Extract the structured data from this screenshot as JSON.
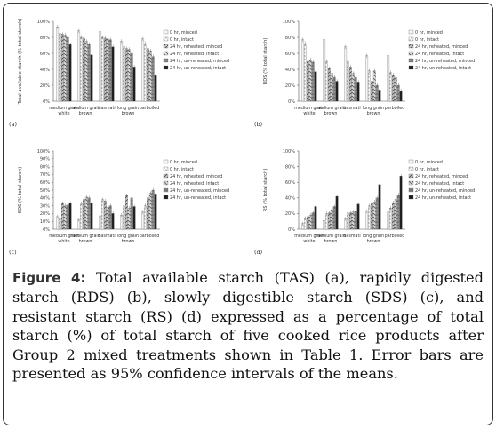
{
  "caption": {
    "label": "Figure 4:",
    "text": "Total available starch (TAS) (a), rapidly digested starch (RDS) (b), slowly digestible starch (SDS) (c), and resistant starch (RS) (d) expressed as a percentage of total starch (%) of total starch of five cooked rice products after Group 2 mixed treatments shown in Table 1. Error bars are presented as 95% confidence intervals of the means."
  },
  "colors": {
    "frame": "#333333",
    "bar_dark": "#202020",
    "bar_light": "#f2f2f2"
  },
  "legend_entries": [
    "0 hr, minced",
    "0 hr, intact",
    "24 hr, reheated, minced",
    "24 hr, reheated, intact",
    "24 hr, un-reheated, minced",
    "24 hr, un-reheated, intact"
  ],
  "chart_data": [
    {
      "type": "bar",
      "panel_label": "(a)",
      "ylabel": "Total available starch (% total starch)",
      "ylim": [
        0,
        100
      ],
      "yticks": [
        "0%",
        "20%",
        "40%",
        "60%",
        "80%",
        "100%"
      ],
      "categories": [
        "medium grain white",
        "medium grain brown",
        "basmati",
        "long grain brown",
        "parboiled"
      ],
      "legend_position": "right",
      "series": [
        {
          "name": "0 hr, minced",
          "values": [
            93,
            88,
            87,
            75,
            78
          ]
        },
        {
          "name": "0 hr, intact",
          "values": [
            85,
            80,
            80,
            68,
            72
          ]
        },
        {
          "name": "24 hr, reheated, minced",
          "values": [
            84,
            79,
            79,
            66,
            66
          ]
        },
        {
          "name": "24 hr, reheated, intact",
          "values": [
            83,
            75,
            78,
            65,
            63
          ]
        },
        {
          "name": "24 hr, un-reheated, minced",
          "values": [
            80,
            71,
            77,
            60,
            56
          ]
        },
        {
          "name": "24 hr, un-reheated, intact",
          "values": [
            71,
            58,
            68,
            43,
            32
          ]
        }
      ]
    },
    {
      "type": "bar",
      "panel_label": "(b)",
      "ylabel": "RDS (% total starch)",
      "ylim": [
        0,
        100
      ],
      "yticks": [
        "0%",
        "20%",
        "40%",
        "60%",
        "80%",
        "100%"
      ],
      "categories": [
        "medium grain white",
        "medium grain brown",
        "basmati",
        "long grain brown",
        "parboiled"
      ],
      "legend_position": "right",
      "series": [
        {
          "name": "0 hr, minced",
          "values": [
            77,
            77,
            68,
            57,
            57
          ]
        },
        {
          "name": "0 hr, intact",
          "values": [
            72,
            50,
            50,
            38,
            36
          ]
        },
        {
          "name": "24 hr, reheated, minced",
          "values": [
            50,
            41,
            43,
            25,
            33
          ]
        },
        {
          "name": "24 hr, reheated, intact",
          "values": [
            52,
            35,
            35,
            38,
            30
          ]
        },
        {
          "name": "24 hr, un-reheated, minced",
          "values": [
            49,
            30,
            30,
            20,
            20
          ]
        },
        {
          "name": "24 hr, un-reheated, intact",
          "values": [
            37,
            25,
            24,
            14,
            13
          ]
        }
      ]
    },
    {
      "type": "bar",
      "panel_label": "(c)",
      "ylabel": "SDS (% total starch)",
      "ylim": [
        0,
        100
      ],
      "yticks": [
        "0%",
        "10%",
        "20%",
        "30%",
        "40%",
        "50%",
        "60%",
        "70%",
        "80%",
        "90%",
        "100%"
      ],
      "categories": [
        "medium grain white",
        "medium grain brown",
        "basmati",
        "long grain brown",
        "parboiled"
      ],
      "legend_position": "right",
      "series": [
        {
          "name": "0 hr, minced",
          "values": [
            16,
            12,
            17,
            18,
            22
          ]
        },
        {
          "name": "0 hr, intact",
          "values": [
            14,
            33,
            38,
            30,
            30
          ]
        },
        {
          "name": "24 hr, reheated, minced",
          "values": [
            33,
            38,
            36,
            43,
            40
          ]
        },
        {
          "name": "24 hr, reheated, intact",
          "values": [
            30,
            41,
            28,
            27,
            46
          ]
        },
        {
          "name": "24 hr, un-reheated, minced",
          "values": [
            31,
            40,
            30,
            40,
            50
          ]
        },
        {
          "name": "24 hr, un-reheated, intact",
          "values": [
            33,
            33,
            20,
            29,
            45
          ]
        }
      ]
    },
    {
      "type": "bar",
      "panel_label": "(d)",
      "ylabel": "RS (% total starch)",
      "ylim": [
        0,
        100
      ],
      "yticks": [
        "0%",
        "20%",
        "40%",
        "60%",
        "80%",
        "100%"
      ],
      "categories": [
        "medium grain white",
        "medium grain brown",
        "basmati",
        "long grain brown",
        "parboiled"
      ],
      "legend_position": "right",
      "series": [
        {
          "name": "0 hr, minced",
          "values": [
            7,
            11,
            13,
            23,
            23
          ]
        },
        {
          "name": "0 hr, intact",
          "values": [
            14,
            20,
            21,
            30,
            27
          ]
        },
        {
          "name": "24 hr, reheated, minced",
          "values": [
            16,
            21,
            21,
            34,
            34
          ]
        },
        {
          "name": "24 hr, reheated, intact",
          "values": [
            18,
            25,
            22,
            35,
            38
          ]
        },
        {
          "name": "24 hr, un-reheated, minced",
          "values": [
            21,
            29,
            23,
            40,
            44
          ]
        },
        {
          "name": "24 hr, un-reheated, intact",
          "values": [
            29,
            42,
            32,
            57,
            68
          ]
        }
      ]
    }
  ]
}
